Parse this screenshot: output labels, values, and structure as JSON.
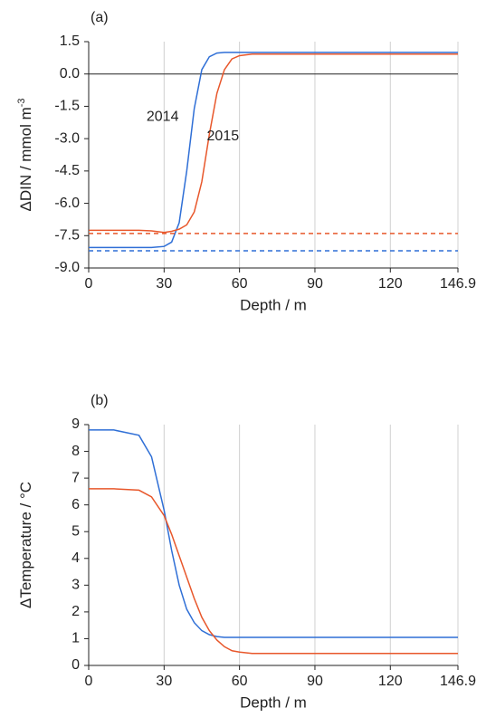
{
  "chart_data": [
    {
      "type": "line",
      "label": "(a)",
      "ylabel": "ΔDIN / mmol m",
      "ylabel_superscript": "-3",
      "xlabel": "Depth / m",
      "x": [
        0,
        10,
        20,
        25,
        30,
        33,
        36,
        39,
        42,
        45,
        48,
        51,
        54,
        57,
        60,
        65,
        70,
        146.9
      ],
      "xlim": [
        0,
        146.9
      ],
      "xticks": [
        0,
        30,
        60,
        90,
        120,
        146.9
      ],
      "ylim": [
        -9,
        1.5
      ],
      "yticks": [
        {
          "value": -9,
          "label": "-9.0"
        },
        -7.5,
        {
          "value": -6,
          "label": "-6.0"
        },
        -4.5,
        {
          "value": -3,
          "label": "-3.0"
        },
        -1.5,
        {
          "value": 0,
          "label": "0.0"
        },
        1.5
      ],
      "grid": true,
      "zero_line": true,
      "series": [
        {
          "color": "#2f6fd6",
          "style": "solid",
          "values": [
            -8.05,
            -8.05,
            -8.05,
            -8.05,
            -8.0,
            -7.8,
            -6.9,
            -4.5,
            -1.6,
            0.2,
            0.8,
            0.97,
            1.0,
            1.0,
            1.0,
            1.0,
            1.0,
            1.0
          ]
        },
        {
          "color": "#e8572b",
          "style": "solid",
          "values": [
            -7.25,
            -7.25,
            -7.25,
            -7.28,
            -7.35,
            -7.3,
            -7.2,
            -7.0,
            -6.4,
            -5.0,
            -2.8,
            -0.9,
            0.2,
            0.7,
            0.85,
            0.92,
            0.92,
            0.92
          ]
        },
        {
          "color": "#2f6fd6",
          "style": "dashed",
          "values": [
            -8.2,
            -8.2,
            -8.2,
            -8.2,
            -8.2,
            -8.2,
            -8.2,
            -8.2,
            -8.2,
            -8.2,
            -8.2,
            -8.2,
            -8.2,
            -8.2,
            -8.2,
            -8.2,
            -8.2,
            -8.2
          ]
        },
        {
          "color": "#e8572b",
          "style": "dashed",
          "values": [
            -7.4,
            -7.4,
            -7.4,
            -7.4,
            -7.4,
            -7.4,
            -7.4,
            -7.4,
            -7.4,
            -7.4,
            -7.4,
            -7.4,
            -7.4,
            -7.4,
            -7.4,
            -7.4,
            -7.4,
            -7.4
          ]
        }
      ],
      "annotations": [
        {
          "text": "2014",
          "color": "#2f6fd6",
          "x": 23,
          "y": -2.0
        },
        {
          "text": "2015",
          "color": "#e8572b",
          "x": 47,
          "y": -2.9
        }
      ]
    },
    {
      "type": "line",
      "label": "(b)",
      "ylabel": "ΔTemperature / °C",
      "xlabel": "Depth / m",
      "x": [
        0,
        10,
        20,
        25,
        30,
        33,
        36,
        39,
        42,
        45,
        48,
        51,
        54,
        57,
        60,
        65,
        70,
        146.9
      ],
      "xlim": [
        0,
        146.9
      ],
      "xticks": [
        0,
        30,
        60,
        90,
        120,
        146.9
      ],
      "ylim": [
        0,
        9
      ],
      "yticks": [
        0,
        1,
        2,
        3,
        4,
        5,
        6,
        7,
        8,
        9
      ],
      "grid": true,
      "series": [
        {
          "color": "#2f6fd6",
          "style": "solid",
          "values": [
            8.8,
            8.8,
            8.6,
            7.8,
            5.8,
            4.3,
            3.0,
            2.1,
            1.6,
            1.3,
            1.15,
            1.08,
            1.05,
            1.05,
            1.05,
            1.05,
            1.05,
            1.05
          ]
        },
        {
          "color": "#e8572b",
          "style": "solid",
          "values": [
            6.6,
            6.6,
            6.55,
            6.3,
            5.6,
            4.9,
            4.1,
            3.3,
            2.5,
            1.8,
            1.3,
            0.95,
            0.7,
            0.55,
            0.5,
            0.45,
            0.45,
            0.45
          ]
        }
      ]
    }
  ]
}
